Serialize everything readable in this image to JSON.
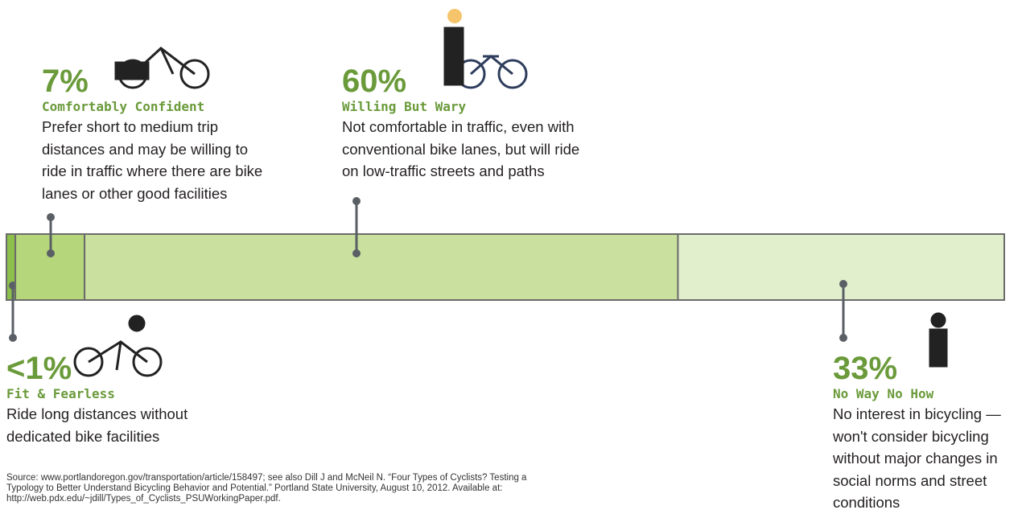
{
  "chart_data": {
    "type": "bar",
    "stacked": true,
    "horizontal": true,
    "series": [
      {
        "name": "Fit & Fearless",
        "color": "#8cc04a",
        "values": [
          0.9
        ],
        "value_labels": [
          "<1%"
        ],
        "description": [
          "Ride long distances without",
          "dedicated bike facilities"
        ]
      },
      {
        "name": "Comfortably Confident",
        "color": "#b5d67a",
        "values": [
          7
        ],
        "value_labels": [
          "7%"
        ],
        "description": [
          "Prefer short to medium trip",
          "distances and may be willing to",
          "ride in traffic where there are bike",
          "lanes or other good facilities"
        ]
      },
      {
        "name": "Willing But Wary",
        "color": "#c9e09e",
        "values": [
          60
        ],
        "value_labels": [
          "60%"
        ],
        "description": [
          "Not comfortable in traffic, even with",
          "conventional bike lanes, but will ride",
          "on low-traffic streets and paths"
        ]
      },
      {
        "name": "No Way No How",
        "color": "#e2efcc",
        "values": [
          33
        ],
        "value_labels": [
          "33%"
        ],
        "description": [
          "No interest in bicycling —",
          "won't consider bicycling",
          "without major changes in",
          "social norms and street",
          "conditions"
        ]
      }
    ],
    "source": [
      "Source: www.portlandoregon.gov/transportation/article/158497; see also Dill J and McNeil N. “Four Types of Cyclists? Testing a",
      "Typology to Better Understand Bicycling Behavior and Potential.” Portland State University, August 10, 2012.  Available at:",
      "http://web.pdx.edu/~jdill/Types_of_Cyclists_PSUWorkingPaper.pdf."
    ]
  }
}
